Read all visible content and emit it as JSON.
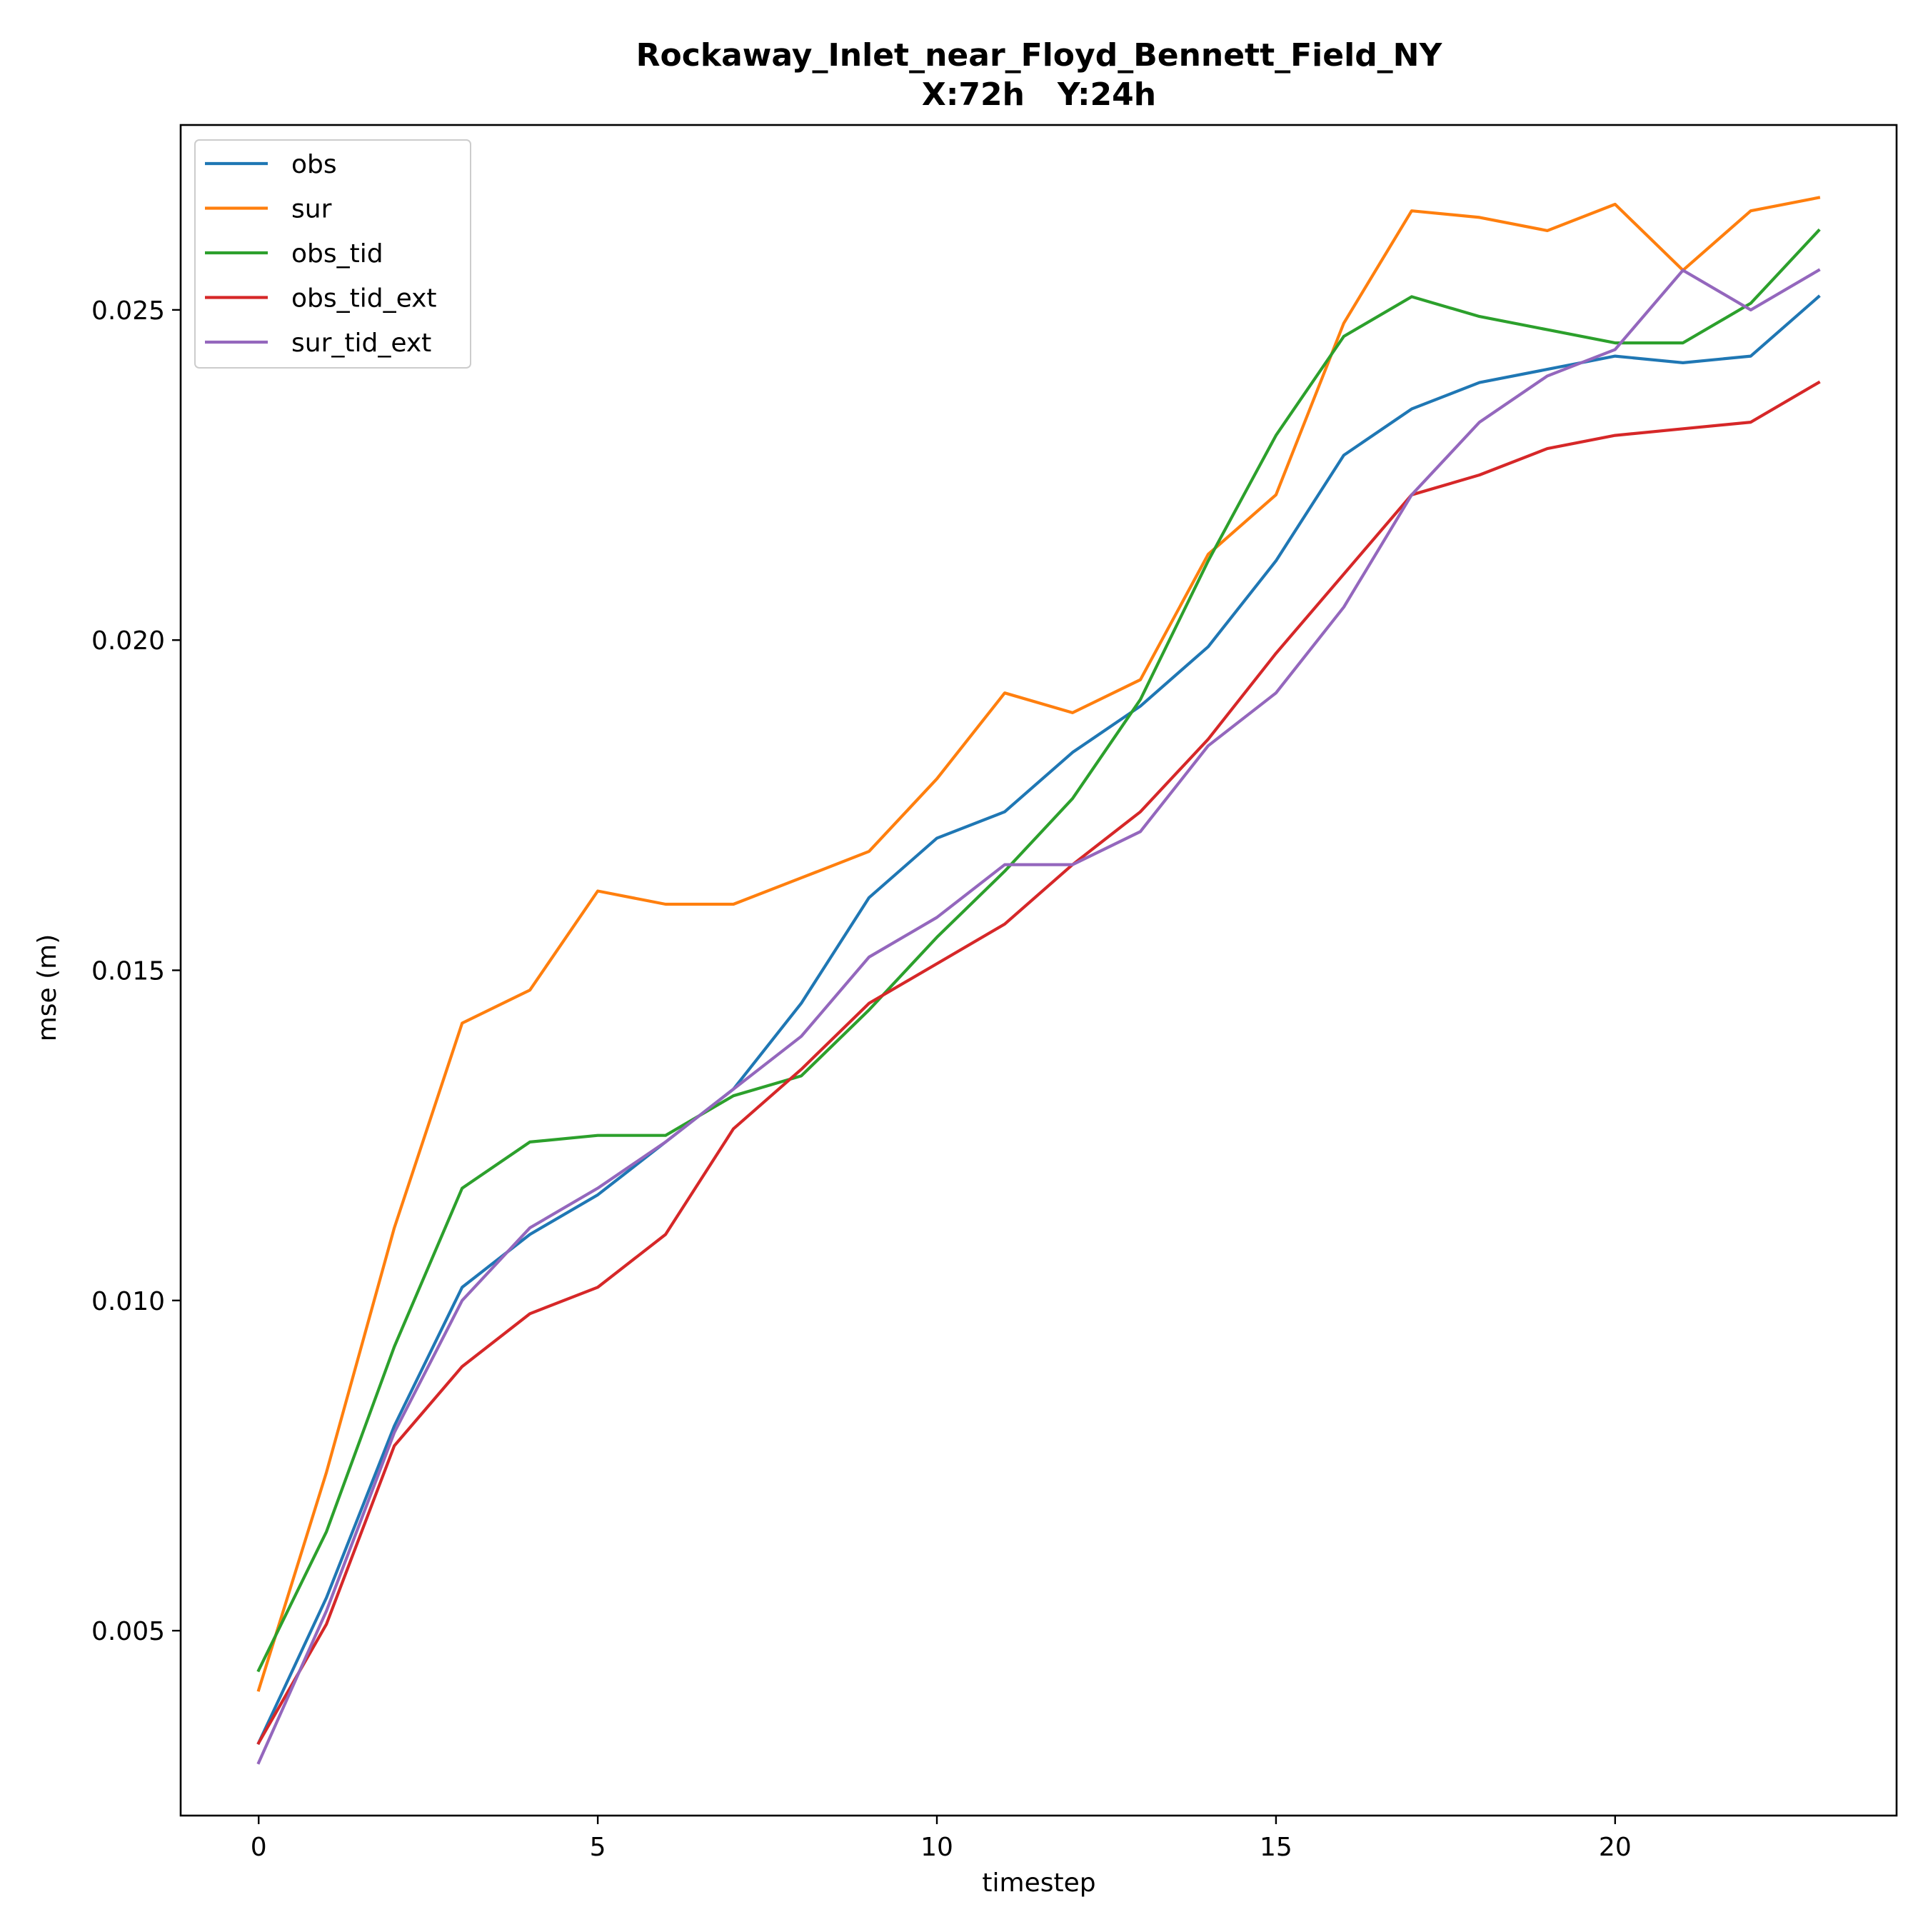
{
  "chart_data": {
    "type": "line",
    "title": "Rockaway_Inlet_near_Floyd_Bennett_Field_NY",
    "subtitle": "X:72h   Y:24h",
    "xlabel": "timestep",
    "ylabel": "mse (m)",
    "xlim": [
      -1.15,
      24.15
    ],
    "ylim": [
      0.0022,
      0.0278
    ],
    "xticks": [
      0,
      5,
      10,
      15,
      20
    ],
    "yticks": [
      0.005,
      0.01,
      0.015,
      0.02,
      0.025
    ],
    "xtick_labels": [
      "0",
      "5",
      "10",
      "15",
      "20"
    ],
    "ytick_labels": [
      "0.005",
      "0.010",
      "0.015",
      "0.020",
      "0.025"
    ],
    "grid": false,
    "legend_position": "top-left",
    "x": [
      0,
      1,
      2,
      3,
      4,
      5,
      6,
      7,
      8,
      9,
      10,
      11,
      12,
      13,
      14,
      15,
      16,
      17,
      18,
      19,
      20,
      21,
      22,
      23
    ],
    "series": [
      {
        "name": "obs",
        "color": "#1f77b4",
        "values": [
          0.0033,
          0.0055,
          0.0081,
          0.0102,
          0.011,
          0.0116,
          0.0124,
          0.0132,
          0.0145,
          0.0161,
          0.017,
          0.0174,
          0.0183,
          0.019,
          0.0199,
          0.0212,
          0.0228,
          0.0235,
          0.0239,
          0.0241,
          0.0243,
          0.0242,
          0.0243,
          0.0252
        ]
      },
      {
        "name": "sur",
        "color": "#ff7f0e",
        "values": [
          0.0041,
          0.0074,
          0.0111,
          0.0142,
          0.0147,
          0.0162,
          0.016,
          0.016,
          0.0164,
          0.0168,
          0.0179,
          0.0192,
          0.0189,
          0.0194,
          0.0213,
          0.0222,
          0.0248,
          0.0265,
          0.0264,
          0.0262,
          0.0266,
          0.0256,
          0.0265,
          0.0267
        ]
      },
      {
        "name": "obs_tid",
        "color": "#2ca02c",
        "values": [
          0.0044,
          0.0065,
          0.0093,
          0.0117,
          0.0124,
          0.0125,
          0.0125,
          0.0131,
          0.0134,
          0.0144,
          0.0155,
          0.0165,
          0.0176,
          0.0191,
          0.0212,
          0.0231,
          0.0246,
          0.0252,
          0.0249,
          0.0247,
          0.0245,
          0.0245,
          0.0251,
          0.0262
        ]
      },
      {
        "name": "obs_tid_ext",
        "color": "#d62728",
        "values": [
          0.0033,
          0.0051,
          0.0078,
          0.009,
          0.0098,
          0.0102,
          0.011,
          0.0126,
          0.0135,
          0.0145,
          0.0151,
          0.0157,
          0.0166,
          0.0174,
          0.0185,
          0.0198,
          0.021,
          0.0222,
          0.0225,
          0.0229,
          0.0231,
          0.0232,
          0.0233,
          0.0239
        ]
      },
      {
        "name": "sur_tid_ext",
        "color": "#9467bd",
        "values": [
          0.003,
          0.0053,
          0.008,
          0.01,
          0.0111,
          0.0117,
          0.0124,
          0.0132,
          0.014,
          0.0152,
          0.0158,
          0.0166,
          0.0166,
          0.0171,
          0.0184,
          0.0192,
          0.0205,
          0.0222,
          0.0233,
          0.024,
          0.0244,
          0.0256,
          0.025,
          0.0256
        ]
      }
    ]
  }
}
